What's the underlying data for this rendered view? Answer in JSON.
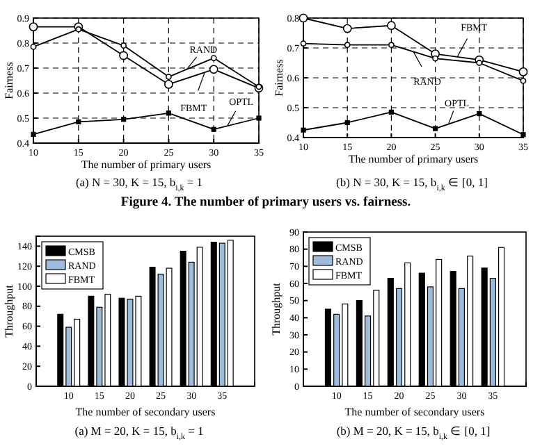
{
  "chart_data": [
    {
      "type": "line",
      "xlabel": "The number of primary users",
      "ylabel": "Fairness",
      "x": [
        10,
        15,
        20,
        25,
        30,
        35
      ],
      "xlim": [
        10,
        35
      ],
      "xticks": [
        10,
        15,
        20,
        25,
        30,
        35
      ],
      "ylim": [
        0.4,
        0.9
      ],
      "yticks": [
        0.4,
        0.5,
        0.6,
        0.7,
        0.8,
        0.9
      ],
      "grid": true,
      "line_style": "solid",
      "series": [
        {
          "name": "FBMT",
          "color": "#000000",
          "marker": "circle",
          "values": [
            0.865,
            0.865,
            0.75,
            0.635,
            0.695,
            0.62
          ]
        },
        {
          "name": "RAND",
          "color": "#000000",
          "marker": "circle",
          "values": [
            0.785,
            0.855,
            0.79,
            0.665,
            0.74,
            0.625
          ]
        },
        {
          "name": "OPTL",
          "color": "#000000",
          "marker": "square",
          "values": [
            0.435,
            0.485,
            0.495,
            0.52,
            0.455,
            0.5
          ]
        }
      ],
      "annotations": [
        "(a) N = 30, K = 15, b$_{i,k}$ = 1",
        "Figure 4. The number of primary users vs. fairness."
      ]
    },
    {
      "type": "line",
      "xlabel": "The number of primary users",
      "ylabel": "Fairness",
      "x": [
        10,
        15,
        20,
        25,
        30,
        35
      ],
      "xlim": [
        10,
        35
      ],
      "xticks": [
        10,
        15,
        20,
        25,
        30,
        35
      ],
      "ylim": [
        0.4,
        0.8
      ],
      "yticks": [
        0.4,
        0.5,
        0.6,
        0.7,
        0.8
      ],
      "grid": true,
      "line_style": "solid",
      "series": [
        {
          "name": "FBMT",
          "color": "#000000",
          "marker": "circle",
          "values": [
            0.8,
            0.765,
            0.775,
            0.68,
            0.66,
            0.62
          ]
        },
        {
          "name": "RAND",
          "color": "#000000",
          "marker": "circle",
          "values": [
            0.715,
            0.71,
            0.71,
            0.665,
            0.65,
            0.59
          ]
        },
        {
          "name": "OPTL",
          "color": "#000000",
          "marker": "square",
          "values": [
            0.425,
            0.45,
            0.485,
            0.43,
            0.48,
            0.41
          ]
        }
      ],
      "annotations": [
        "(b) N = 30, K = 15, b$_{i,k}$ ∈ [0, 1]"
      ]
    },
    {
      "type": "bar",
      "xlabel": "The number of secondary users",
      "ylabel": "Throughput",
      "categories": [
        "10",
        "15",
        "20",
        "25",
        "30",
        "35"
      ],
      "ylim": [
        0,
        150
      ],
      "yticks": [
        0,
        20,
        40,
        60,
        80,
        100,
        120,
        140
      ],
      "legend": "top left",
      "series": [
        {
          "name": "CMSB",
          "color": "#000000",
          "values": [
            72,
            90,
            88,
            119,
            135,
            144
          ]
        },
        {
          "name": "RAND",
          "color": "#9dbbdc",
          "values": [
            59,
            79,
            87,
            112,
            124,
            143
          ]
        },
        {
          "name": "FBMT",
          "color": "#ffffff",
          "values": [
            67,
            92,
            90,
            118,
            139,
            146
          ]
        }
      ],
      "annotations": [
        "(a) M = 20, K = 15, b$_{i,k}$ = 1"
      ]
    },
    {
      "type": "bar",
      "xlabel": "The number of secondary users",
      "ylabel": "Throughput",
      "categories": [
        "10",
        "15",
        "20",
        "25",
        "30",
        "35"
      ],
      "ylim": [
        0,
        90
      ],
      "yticks": [
        0,
        10,
        20,
        30,
        40,
        50,
        60,
        70,
        80,
        90
      ],
      "legend": "top left",
      "series": [
        {
          "name": "CMSB",
          "color": "#000000",
          "values": [
            45,
            50,
            63,
            66,
            67,
            69
          ]
        },
        {
          "name": "RAND",
          "color": "#9dbbdc",
          "values": [
            42,
            41,
            57,
            58,
            57,
            63
          ]
        },
        {
          "name": "FBMT",
          "color": "#ffffff",
          "values": [
            48,
            56,
            72,
            74,
            76,
            81
          ]
        }
      ],
      "annotations": [
        "(b) M = 20, K = 15, b$_{i,k}$ ∈ [0, 1]"
      ]
    }
  ]
}
